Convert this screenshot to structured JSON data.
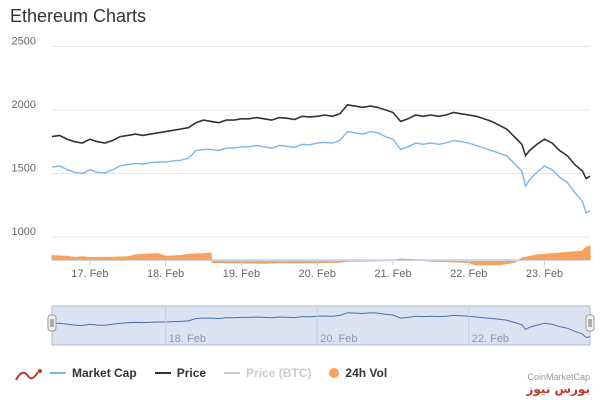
{
  "chart_data": {
    "type": "line",
    "title": "Ethereum Charts",
    "x_labels": [
      "17. Feb",
      "18. Feb",
      "19. Feb",
      "20. Feb",
      "21. Feb",
      "22. Feb",
      "23. Feb"
    ],
    "navigator_labels": [
      "18. Feb",
      "20. Feb",
      "22. Feb"
    ],
    "y_ticks": [
      1000,
      1500,
      2000,
      2500
    ],
    "ylim": [
      820,
      2550
    ],
    "x_range_days": [
      16.5,
      23.6
    ],
    "grid": true,
    "legend_position": "bottom",
    "series": [
      {
        "name": "Market Cap",
        "color": "#7cb5ec",
        "points": [
          [
            16.5,
            1550
          ],
          [
            16.6,
            1560
          ],
          [
            16.7,
            1530
          ],
          [
            16.8,
            1510
          ],
          [
            16.9,
            1500
          ],
          [
            17.0,
            1530
          ],
          [
            17.1,
            1510
          ],
          [
            17.2,
            1505
          ],
          [
            17.3,
            1530
          ],
          [
            17.4,
            1560
          ],
          [
            17.5,
            1570
          ],
          [
            17.6,
            1580
          ],
          [
            17.7,
            1575
          ],
          [
            17.8,
            1585
          ],
          [
            17.9,
            1590
          ],
          [
            18.0,
            1590
          ],
          [
            18.1,
            1600
          ],
          [
            18.2,
            1605
          ],
          [
            18.3,
            1620
          ],
          [
            18.4,
            1680
          ],
          [
            18.5,
            1690
          ],
          [
            18.6,
            1690
          ],
          [
            18.7,
            1680
          ],
          [
            18.8,
            1700
          ],
          [
            18.9,
            1700
          ],
          [
            19.0,
            1710
          ],
          [
            19.1,
            1710
          ],
          [
            19.2,
            1720
          ],
          [
            19.3,
            1710
          ],
          [
            19.4,
            1700
          ],
          [
            19.5,
            1720
          ],
          [
            19.6,
            1715
          ],
          [
            19.7,
            1705
          ],
          [
            19.8,
            1730
          ],
          [
            19.9,
            1725
          ],
          [
            20.0,
            1740
          ],
          [
            20.1,
            1745
          ],
          [
            20.2,
            1740
          ],
          [
            20.3,
            1760
          ],
          [
            20.4,
            1830
          ],
          [
            20.5,
            1820
          ],
          [
            20.6,
            1810
          ],
          [
            20.7,
            1830
          ],
          [
            20.8,
            1820
          ],
          [
            20.9,
            1790
          ],
          [
            21.0,
            1770
          ],
          [
            21.1,
            1690
          ],
          [
            21.2,
            1710
          ],
          [
            21.3,
            1740
          ],
          [
            21.4,
            1730
          ],
          [
            21.5,
            1740
          ],
          [
            21.6,
            1730
          ],
          [
            21.7,
            1740
          ],
          [
            21.8,
            1760
          ],
          [
            21.9,
            1750
          ],
          [
            22.0,
            1740
          ],
          [
            22.1,
            1720
          ],
          [
            22.2,
            1700
          ],
          [
            22.3,
            1680
          ],
          [
            22.4,
            1660
          ],
          [
            22.5,
            1640
          ],
          [
            22.6,
            1580
          ],
          [
            22.7,
            1520
          ],
          [
            22.75,
            1400
          ],
          [
            22.8,
            1450
          ],
          [
            22.9,
            1510
          ],
          [
            23.0,
            1560
          ],
          [
            23.1,
            1530
          ],
          [
            23.2,
            1470
          ],
          [
            23.3,
            1430
          ],
          [
            23.4,
            1350
          ],
          [
            23.5,
            1280
          ],
          [
            23.55,
            1190
          ],
          [
            23.6,
            1210
          ]
        ]
      },
      {
        "name": "Price",
        "color": "#333333",
        "points": [
          [
            16.5,
            1790
          ],
          [
            16.6,
            1800
          ],
          [
            16.7,
            1770
          ],
          [
            16.8,
            1750
          ],
          [
            16.9,
            1740
          ],
          [
            17.0,
            1770
          ],
          [
            17.1,
            1750
          ],
          [
            17.2,
            1740
          ],
          [
            17.3,
            1760
          ],
          [
            17.4,
            1790
          ],
          [
            17.5,
            1800
          ],
          [
            17.6,
            1810
          ],
          [
            17.7,
            1800
          ],
          [
            17.8,
            1810
          ],
          [
            17.9,
            1820
          ],
          [
            18.0,
            1830
          ],
          [
            18.1,
            1840
          ],
          [
            18.2,
            1850
          ],
          [
            18.3,
            1860
          ],
          [
            18.4,
            1900
          ],
          [
            18.5,
            1920
          ],
          [
            18.6,
            1910
          ],
          [
            18.7,
            1900
          ],
          [
            18.8,
            1920
          ],
          [
            18.9,
            1920
          ],
          [
            19.0,
            1930
          ],
          [
            19.1,
            1930
          ],
          [
            19.2,
            1940
          ],
          [
            19.3,
            1930
          ],
          [
            19.4,
            1920
          ],
          [
            19.5,
            1940
          ],
          [
            19.6,
            1935
          ],
          [
            19.7,
            1925
          ],
          [
            19.8,
            1950
          ],
          [
            19.9,
            1945
          ],
          [
            20.0,
            1950
          ],
          [
            20.1,
            1960
          ],
          [
            20.2,
            1950
          ],
          [
            20.3,
            1970
          ],
          [
            20.4,
            2040
          ],
          [
            20.5,
            2030
          ],
          [
            20.6,
            2020
          ],
          [
            20.7,
            2030
          ],
          [
            20.8,
            2020
          ],
          [
            20.9,
            2000
          ],
          [
            21.0,
            1980
          ],
          [
            21.1,
            1910
          ],
          [
            21.2,
            1930
          ],
          [
            21.3,
            1960
          ],
          [
            21.4,
            1950
          ],
          [
            21.5,
            1960
          ],
          [
            21.6,
            1950
          ],
          [
            21.7,
            1960
          ],
          [
            21.8,
            1980
          ],
          [
            21.9,
            1970
          ],
          [
            22.0,
            1960
          ],
          [
            22.1,
            1950
          ],
          [
            22.2,
            1930
          ],
          [
            22.3,
            1910
          ],
          [
            22.4,
            1880
          ],
          [
            22.5,
            1850
          ],
          [
            22.6,
            1790
          ],
          [
            22.7,
            1730
          ],
          [
            22.75,
            1640
          ],
          [
            22.8,
            1680
          ],
          [
            22.9,
            1730
          ],
          [
            23.0,
            1770
          ],
          [
            23.1,
            1740
          ],
          [
            23.2,
            1680
          ],
          [
            23.3,
            1640
          ],
          [
            23.4,
            1570
          ],
          [
            23.5,
            1520
          ],
          [
            23.55,
            1460
          ],
          [
            23.6,
            1480
          ]
        ]
      },
      {
        "name": "Price (BTC)",
        "color": "#cccccc",
        "hidden": true,
        "points": []
      },
      {
        "name": "24h Vol",
        "color": "#f7a35c",
        "type": "area",
        "points": [
          [
            16.5,
            855
          ],
          [
            16.7,
            850
          ],
          [
            16.8,
            840
          ],
          [
            16.9,
            845
          ],
          [
            17.0,
            840
          ],
          [
            17.3,
            842
          ],
          [
            17.5,
            845
          ],
          [
            17.6,
            860
          ],
          [
            17.9,
            870
          ],
          [
            18.0,
            850
          ],
          [
            18.2,
            855
          ],
          [
            18.3,
            865
          ],
          [
            18.5,
            870
          ],
          [
            18.6,
            875
          ],
          [
            18.61,
            800
          ],
          [
            19.0,
            798
          ],
          [
            19.3,
            795
          ],
          [
            19.5,
            800
          ],
          [
            19.7,
            798
          ],
          [
            20.0,
            800
          ],
          [
            20.3,
            802
          ],
          [
            20.4,
            810
          ],
          [
            20.7,
            812
          ],
          [
            21.0,
            815
          ],
          [
            21.1,
            828
          ],
          [
            21.3,
            822
          ],
          [
            21.5,
            810
          ],
          [
            21.8,
            805
          ],
          [
            22.0,
            800
          ],
          [
            22.1,
            780
          ],
          [
            22.4,
            782
          ],
          [
            22.6,
            800
          ],
          [
            22.7,
            835
          ],
          [
            22.9,
            860
          ],
          [
            23.1,
            870
          ],
          [
            23.3,
            880
          ],
          [
            23.5,
            890
          ],
          [
            23.55,
            920
          ],
          [
            23.6,
            930
          ]
        ]
      }
    ]
  },
  "legend": [
    {
      "label": "Market Cap",
      "color": "#7cb5ec",
      "kind": "line",
      "muted": false
    },
    {
      "label": "Price",
      "color": "#333333",
      "kind": "line",
      "muted": false
    },
    {
      "label": "Price (BTC)",
      "color": "#cccccc",
      "kind": "line",
      "muted": true
    },
    {
      "label": "24h Vol",
      "color": "#f7a35c",
      "kind": "dot",
      "muted": false
    }
  ],
  "credit": "CoinMarketCap",
  "watermark": "بورس نیوز",
  "colors": {
    "grid": "#e6e6e6",
    "axis_text": "#666666",
    "navigator_fill": "#dbe3f3",
    "navigator_line": "#4572a7",
    "handle": "#f2f2f2"
  }
}
